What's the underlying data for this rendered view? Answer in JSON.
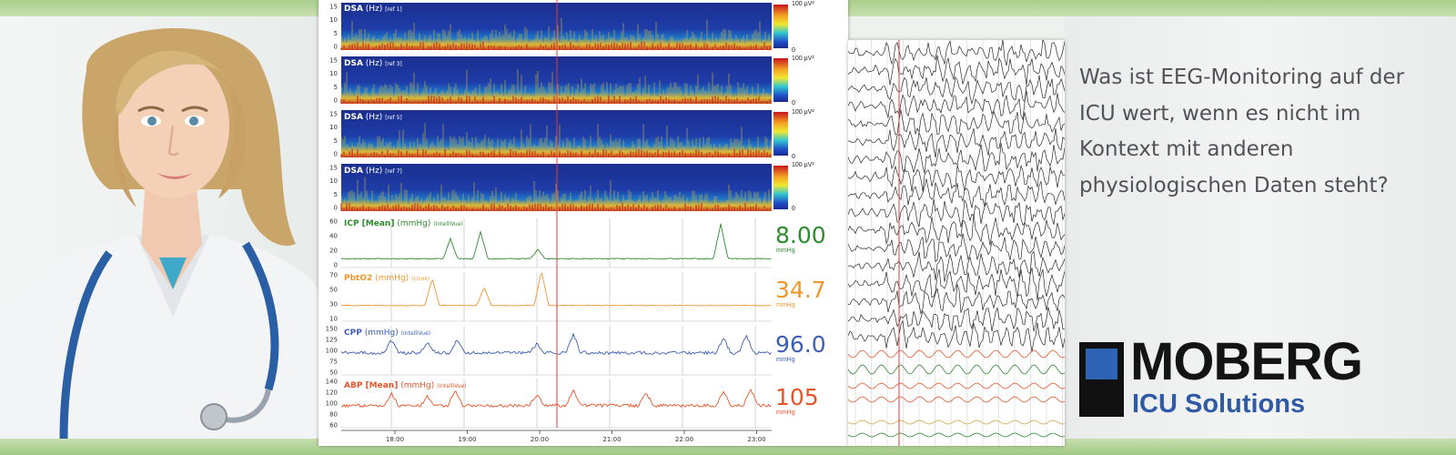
{
  "headline": "Was ist EEG-Monitoring auf der ICU wert, wenn es nicht im Kontext mit anderen physiologischen Daten steht?",
  "brand": {
    "name": "MOBERG",
    "sub": "ICU Solutions",
    "colors": {
      "blue": "#2f63b4",
      "black": "#141414"
    }
  },
  "dsa_panels": [
    {
      "label": "DSA",
      "unit": "(Hz)",
      "ref": "[ref 1]",
      "scale_top": "100 µV²",
      "scale_bottom": "0",
      "y_ticks": [
        "15",
        "10",
        "5",
        "0"
      ]
    },
    {
      "label": "DSA",
      "unit": "(Hz)",
      "ref": "[ref 3]",
      "scale_top": "100 µV²",
      "scale_bottom": "0",
      "y_ticks": [
        "15",
        "10",
        "5",
        "0"
      ]
    },
    {
      "label": "DSA",
      "unit": "(Hz)",
      "ref": "[ref 5]",
      "scale_top": "100 µV²",
      "scale_bottom": "0",
      "y_ticks": [
        "15",
        "10",
        "5",
        "0"
      ]
    },
    {
      "label": "DSA",
      "unit": "(Hz)",
      "ref": "[ref 7]",
      "scale_top": "100 µV²",
      "scale_bottom": "0",
      "y_ticks": [
        "15",
        "10",
        "5",
        "0"
      ]
    }
  ],
  "trends": [
    {
      "name": "ICP [Mean]",
      "unit": "(mmHg)",
      "source": "(IntelliVue)",
      "value": "8.00",
      "value_unit": "mmHg",
      "color": "#2e8b2e",
      "y_ticks": [
        "60",
        "40",
        "20",
        "0"
      ]
    },
    {
      "name": "PbtO2",
      "unit": "(mmHg)",
      "source": "(Licox)",
      "value": "34.7",
      "value_unit": "mmHg",
      "color": "#f0962e",
      "y_ticks": [
        "70",
        "50",
        "30",
        "10"
      ]
    },
    {
      "name": "CPP",
      "unit": "(mmHg)",
      "source": "(IntelliVue)",
      "value": "96.0",
      "value_unit": "mmHg",
      "color": "#3c5fb4",
      "y_ticks": [
        "150",
        "125",
        "100",
        "75",
        "50"
      ]
    },
    {
      "name": "ABP [Mean]",
      "unit": "(mmHg)",
      "source": "(IntelliVue)",
      "value": "105",
      "value_unit": "mmHg",
      "color": "#e8542a",
      "y_ticks": [
        "140",
        "120",
        "100",
        "80",
        "60"
      ]
    }
  ],
  "time_axis": [
    "18:00",
    "19:00",
    "20:00",
    "21:00",
    "22:00",
    "23:00"
  ]
}
